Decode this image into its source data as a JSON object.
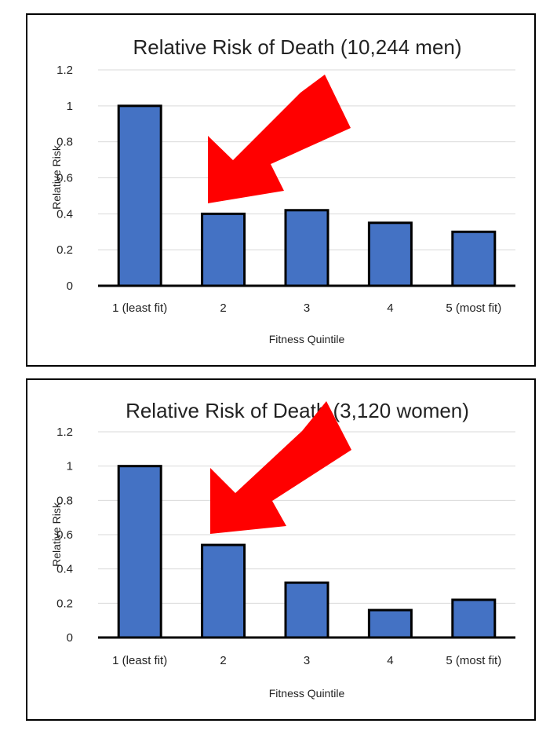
{
  "chart_data": [
    {
      "type": "bar",
      "title": "Relative Risk of Death (10,244 men)",
      "xlabel": "Fitness Quintile",
      "ylabel": "Relative Risk",
      "categories": [
        "1 (least fit)",
        "2",
        "3",
        "4",
        "5 (most fit)"
      ],
      "values": [
        1.0,
        0.4,
        0.42,
        0.35,
        0.3
      ],
      "ylim": [
        0,
        1.2
      ],
      "yticks": [
        "0",
        "0.2",
        "0.4",
        "0.6",
        "0.8",
        "1",
        "1.2"
      ],
      "grid": true,
      "bar_color": "#4472C4",
      "annotation": "red-arrow pointing to quintile 2 bar"
    },
    {
      "type": "bar",
      "title": "Relative Risk of Death (3,120 women)",
      "xlabel": "Fitness Quintile",
      "ylabel": "Relative Risk",
      "categories": [
        "1 (least fit)",
        "2",
        "3",
        "4",
        "5 (most fit)"
      ],
      "values": [
        1.0,
        0.54,
        0.32,
        0.16,
        0.22
      ],
      "ylim": [
        0,
        1.2
      ],
      "yticks": [
        "0",
        "0.2",
        "0.4",
        "0.6",
        "0.8",
        "1",
        "1.2"
      ],
      "grid": true,
      "bar_color": "#4472C4",
      "annotation": "red-arrow pointing to quintile 2 bar"
    }
  ],
  "colors": {
    "bar": "#4472C4",
    "arrow": "#FF0000",
    "grid": "#D9D9D9"
  }
}
